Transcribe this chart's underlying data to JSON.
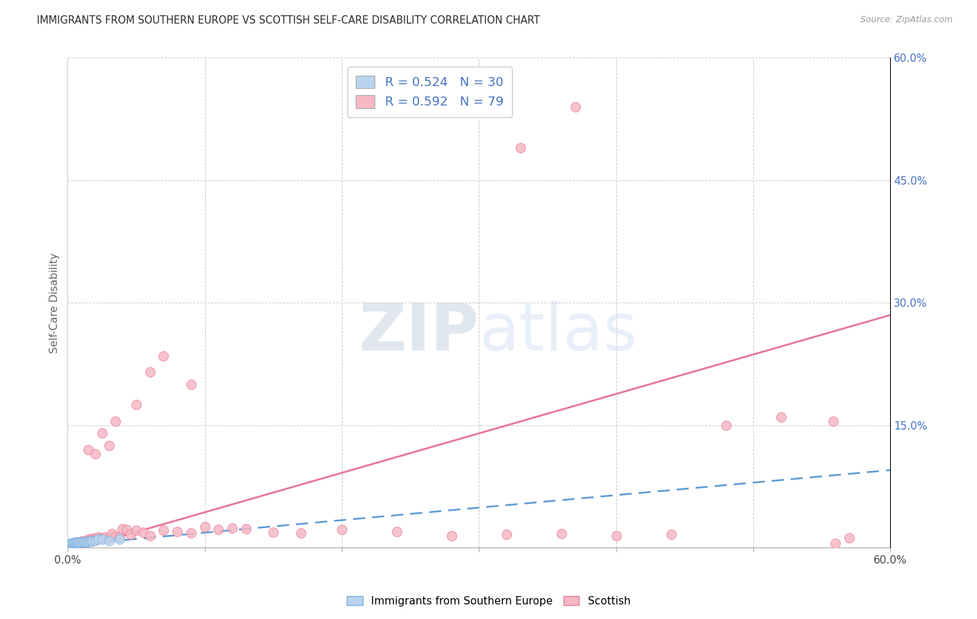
{
  "title": "IMMIGRANTS FROM SOUTHERN EUROPE VS SCOTTISH SELF-CARE DISABILITY CORRELATION CHART",
  "source": "Source: ZipAtlas.com",
  "ylabel": "Self-Care Disability",
  "xlim": [
    0.0,
    0.6
  ],
  "ylim": [
    0.0,
    0.6
  ],
  "legend1_r": "0.524",
  "legend1_n": "30",
  "legend2_r": "0.592",
  "legend2_n": "79",
  "blue_fill": "#b8d4ee",
  "blue_edge": "#7aaedc",
  "pink_fill": "#f5b8c4",
  "pink_edge": "#e87898",
  "blue_line": "#5b9bd5",
  "pink_line": "#e87898",
  "grid_color": "#cccccc",
  "right_tick_color": "#4472c4",
  "title_color": "#2a2a2a",
  "source_color": "#999999",
  "blue_x": [
    0.001,
    0.002,
    0.002,
    0.003,
    0.003,
    0.004,
    0.004,
    0.005,
    0.005,
    0.006,
    0.006,
    0.007,
    0.007,
    0.008,
    0.008,
    0.009,
    0.01,
    0.011,
    0.012,
    0.013,
    0.014,
    0.015,
    0.016,
    0.017,
    0.018,
    0.02,
    0.022,
    0.025,
    0.03,
    0.038
  ],
  "blue_y": [
    0.004,
    0.003,
    0.005,
    0.004,
    0.005,
    0.004,
    0.006,
    0.005,
    0.006,
    0.005,
    0.006,
    0.006,
    0.007,
    0.006,
    0.007,
    0.006,
    0.007,
    0.007,
    0.007,
    0.007,
    0.008,
    0.007,
    0.008,
    0.009,
    0.008,
    0.009,
    0.01,
    0.01,
    0.009,
    0.01
  ],
  "pink_x": [
    0.001,
    0.002,
    0.002,
    0.003,
    0.003,
    0.003,
    0.004,
    0.004,
    0.004,
    0.005,
    0.005,
    0.005,
    0.006,
    0.006,
    0.006,
    0.007,
    0.007,
    0.008,
    0.008,
    0.009,
    0.009,
    0.01,
    0.01,
    0.011,
    0.012,
    0.013,
    0.014,
    0.015,
    0.016,
    0.017,
    0.018,
    0.019,
    0.02,
    0.021,
    0.022,
    0.025,
    0.027,
    0.03,
    0.032,
    0.035,
    0.038,
    0.04,
    0.043,
    0.046,
    0.05,
    0.055,
    0.06,
    0.07,
    0.08,
    0.09,
    0.1,
    0.11,
    0.12,
    0.13,
    0.15,
    0.17,
    0.2,
    0.24,
    0.28,
    0.32,
    0.36,
    0.4,
    0.44,
    0.48,
    0.52,
    0.558,
    0.56,
    0.57,
    0.33,
    0.37,
    0.015,
    0.02,
    0.025,
    0.03,
    0.035,
    0.05,
    0.06,
    0.07,
    0.09
  ],
  "pink_y": [
    0.003,
    0.002,
    0.004,
    0.002,
    0.003,
    0.004,
    0.003,
    0.004,
    0.005,
    0.003,
    0.004,
    0.006,
    0.004,
    0.005,
    0.007,
    0.005,
    0.006,
    0.005,
    0.007,
    0.006,
    0.007,
    0.006,
    0.008,
    0.007,
    0.008,
    0.009,
    0.008,
    0.01,
    0.009,
    0.01,
    0.011,
    0.01,
    0.011,
    0.012,
    0.013,
    0.012,
    0.013,
    0.012,
    0.017,
    0.014,
    0.013,
    0.023,
    0.022,
    0.016,
    0.021,
    0.019,
    0.015,
    0.021,
    0.02,
    0.018,
    0.026,
    0.022,
    0.024,
    0.023,
    0.019,
    0.018,
    0.022,
    0.02,
    0.015,
    0.016,
    0.017,
    0.015,
    0.016,
    0.15,
    0.16,
    0.155,
    0.005,
    0.012,
    0.49,
    0.54,
    0.12,
    0.115,
    0.14,
    0.125,
    0.155,
    0.175,
    0.215,
    0.235,
    0.2
  ],
  "pink_line_x0": 0.0,
  "pink_line_y0": -0.005,
  "pink_line_x1": 0.6,
  "pink_line_y1": 0.285,
  "blue_line_x0": 0.0,
  "blue_line_y0": 0.003,
  "blue_line_x1": 0.6,
  "blue_line_y1": 0.095
}
